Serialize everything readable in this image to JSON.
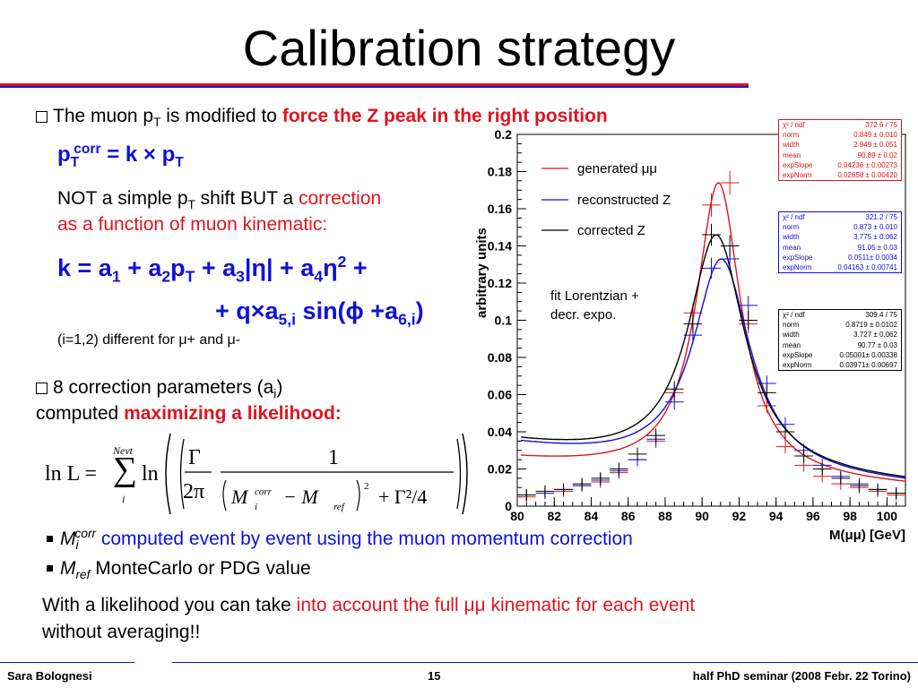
{
  "title": "Calibration strategy",
  "bullets": {
    "b1_pre": "The muon p",
    "b1_sub": "T",
    "b1_mid": " is modified to ",
    "b1_red": "force the Z peak in the right position",
    "eq1_p": "p",
    "eq1_sub": "T",
    "eq1_sup": "corr",
    "eq1_rest": " = k × p",
    "eq1_sub2": "T",
    "not_simple_1": "NOT a simple p",
    "not_simple_sub": "T",
    "not_simple_2": " shift BUT a ",
    "not_simple_red1": "correction",
    "not_simple_red2": "as a function of muon kinematic:",
    "eq2_line1": "k = a1 + a2pT + a3|η| + a4η2 +",
    "eq2_line2": "+ q×a5,i sin(ϕ +a6,i)",
    "note_pre": "(i=1,2) different for ",
    "note_mu1": "μ+",
    "note_and": " and ",
    "note_mu2": "μ-",
    "b2_line1a": "8 correction parameters (a",
    "b2_line1sub": "i",
    "b2_line1b": ")",
    "b2_line2": "computed ",
    "b2_red": "maximizing a likelihood:",
    "m_corr_M": "M",
    "m_corr_sub": "i",
    "m_corr_sup": "corr",
    "m_corr_text": " computed event by event using the muon momentum correction",
    "m_ref_M": "M",
    "m_ref_sub": "ref",
    "m_ref_text": " MonteCarlo or PDG value",
    "final_1": "With a likelihood you can take ",
    "final_red1": "into account the full ",
    "final_mumu": "μμ",
    "final_red2": " kinematic for each event",
    "final_2": "without averaging!!"
  },
  "formula": {
    "lnL": "ln L =",
    "sum_top": "Nevt",
    "sum_bottom": "i",
    "ln": "ln",
    "gamma": "Γ",
    "two_pi": "2π",
    "one": "1",
    "M_i": "M",
    "i_sub": "i",
    "corr_sup": "corr",
    "minus": "− M",
    "ref_sub": "ref",
    "sq": "2",
    "tail": "+ Γ²/4"
  },
  "footer": {
    "left": "Sara Bolognesi",
    "center": "15",
    "right": "half PhD seminar (2008 Febr. 22 Torino)"
  },
  "chart_data": {
    "type": "line",
    "ylabel": "arbitrary units",
    "xlabel": "M(μμ) [GeV]",
    "xlim": [
      80,
      101
    ],
    "ylim": [
      0,
      0.2
    ],
    "xticks": [
      "80",
      "82",
      "84",
      "86",
      "88",
      "90",
      "92",
      "94",
      "96",
      "98",
      "100"
    ],
    "yticks": [
      "0",
      "0.02",
      "0.04",
      "0.06",
      "0.08",
      "0.1",
      "0.12",
      "0.14",
      "0.16",
      "0.18",
      "0.2"
    ],
    "legend": [
      "generated μμ",
      "reconstructed Z",
      "corrected Z"
    ],
    "annotation_1": "fit Lorentzian +",
    "annotation_2": "decr. expo.",
    "series": [
      {
        "name": "generated μμ",
        "color": "#e0141e",
        "fit": {
          "norm": 0.849,
          "width": 2.949,
          "mean": 90.89,
          "expSlope": 0.04236,
          "expNorm": 0.02858
        },
        "points": [
          [
            80.5,
            0.005
          ],
          [
            81.5,
            0.007
          ],
          [
            82.5,
            0.008
          ],
          [
            83.5,
            0.011
          ],
          [
            84.5,
            0.013
          ],
          [
            85.5,
            0.018
          ],
          [
            86.5,
            0.025
          ],
          [
            87.5,
            0.035
          ],
          [
            88.5,
            0.061
          ],
          [
            89.5,
            0.104
          ],
          [
            90.5,
            0.162
          ],
          [
            91.5,
            0.174
          ],
          [
            92.5,
            0.098
          ],
          [
            93.5,
            0.054
          ],
          [
            94.5,
            0.032
          ],
          [
            95.5,
            0.022
          ],
          [
            96.5,
            0.016
          ],
          [
            97.5,
            0.012
          ],
          [
            98.5,
            0.01
          ],
          [
            99.5,
            0.008
          ],
          [
            100.5,
            0.006
          ]
        ]
      },
      {
        "name": "reconstructed Z",
        "color": "#1010d8",
        "fit": {
          "norm": 0.873,
          "width": 3.775,
          "mean": 91.05,
          "expSlope": 0.0511,
          "expNorm": 0.04163
        },
        "points": [
          [
            80.5,
            0.006
          ],
          [
            81.5,
            0.007
          ],
          [
            82.5,
            0.009
          ],
          [
            83.5,
            0.011
          ],
          [
            84.5,
            0.014
          ],
          [
            85.5,
            0.019
          ],
          [
            86.5,
            0.025
          ],
          [
            87.5,
            0.036
          ],
          [
            88.5,
            0.056
          ],
          [
            89.5,
            0.092
          ],
          [
            90.5,
            0.128
          ],
          [
            91.5,
            0.133
          ],
          [
            92.5,
            0.108
          ],
          [
            93.5,
            0.066
          ],
          [
            94.5,
            0.044
          ],
          [
            95.5,
            0.03
          ],
          [
            96.5,
            0.022
          ],
          [
            97.5,
            0.016
          ],
          [
            98.5,
            0.012
          ],
          [
            99.5,
            0.009
          ],
          [
            100.5,
            0.007
          ]
        ]
      },
      {
        "name": "corrected Z",
        "color": "#000000",
        "fit": {
          "norm": 0.8719,
          "width": 3.727,
          "mean": 90.77,
          "expSlope": 0.05001,
          "expNorm": 0.03971
        },
        "points": [
          [
            80.5,
            0.006
          ],
          [
            81.5,
            0.008
          ],
          [
            82.5,
            0.009
          ],
          [
            83.5,
            0.012
          ],
          [
            84.5,
            0.015
          ],
          [
            85.5,
            0.02
          ],
          [
            86.5,
            0.028
          ],
          [
            87.5,
            0.038
          ],
          [
            88.5,
            0.063
          ],
          [
            89.5,
            0.098
          ],
          [
            90.5,
            0.146
          ],
          [
            91.5,
            0.14
          ],
          [
            92.5,
            0.1
          ],
          [
            93.5,
            0.061
          ],
          [
            94.5,
            0.04
          ],
          [
            95.5,
            0.027
          ],
          [
            96.5,
            0.02
          ],
          [
            97.5,
            0.015
          ],
          [
            98.5,
            0.011
          ],
          [
            99.5,
            0.009
          ],
          [
            100.5,
            0.007
          ]
        ]
      }
    ],
    "fitboxes": [
      {
        "color": "#e0141e",
        "rows": [
          [
            "χ² / ndf",
            "372.6 / 75"
          ],
          [
            "norm",
            "0.849 ± 0.010"
          ],
          [
            "width",
            "2.949 ± 0.051"
          ],
          [
            "mean",
            "90.89 ± 0.02"
          ],
          [
            "expSlope",
            "0.04236 ± 0.00273"
          ],
          [
            "expNorm",
            "0.02858 ± 0.00420"
          ]
        ]
      },
      {
        "color": "#1010d8",
        "rows": [
          [
            "χ² / ndf",
            "321.2 / 75"
          ],
          [
            "norm",
            "0.873 ± 0.010"
          ],
          [
            "width",
            "3.775 ± 0.062"
          ],
          [
            "mean",
            "91.05 ± 0.03"
          ],
          [
            "expSlope",
            "0.0511± 0.0034"
          ],
          [
            "expNorm",
            "0.04163 ± 0.00741"
          ]
        ]
      },
      {
        "color": "#000000",
        "rows": [
          [
            "χ² / ndf",
            "309.4 / 75"
          ],
          [
            "norm",
            "0.8719 ± 0.0102"
          ],
          [
            "width",
            "3.727 ± 0.062"
          ],
          [
            "mean",
            "90.77 ± 0.03"
          ],
          [
            "expSlope",
            "0.05001± 0.00338"
          ],
          [
            "expNorm",
            "0.03971± 0.00697"
          ]
        ]
      }
    ]
  }
}
